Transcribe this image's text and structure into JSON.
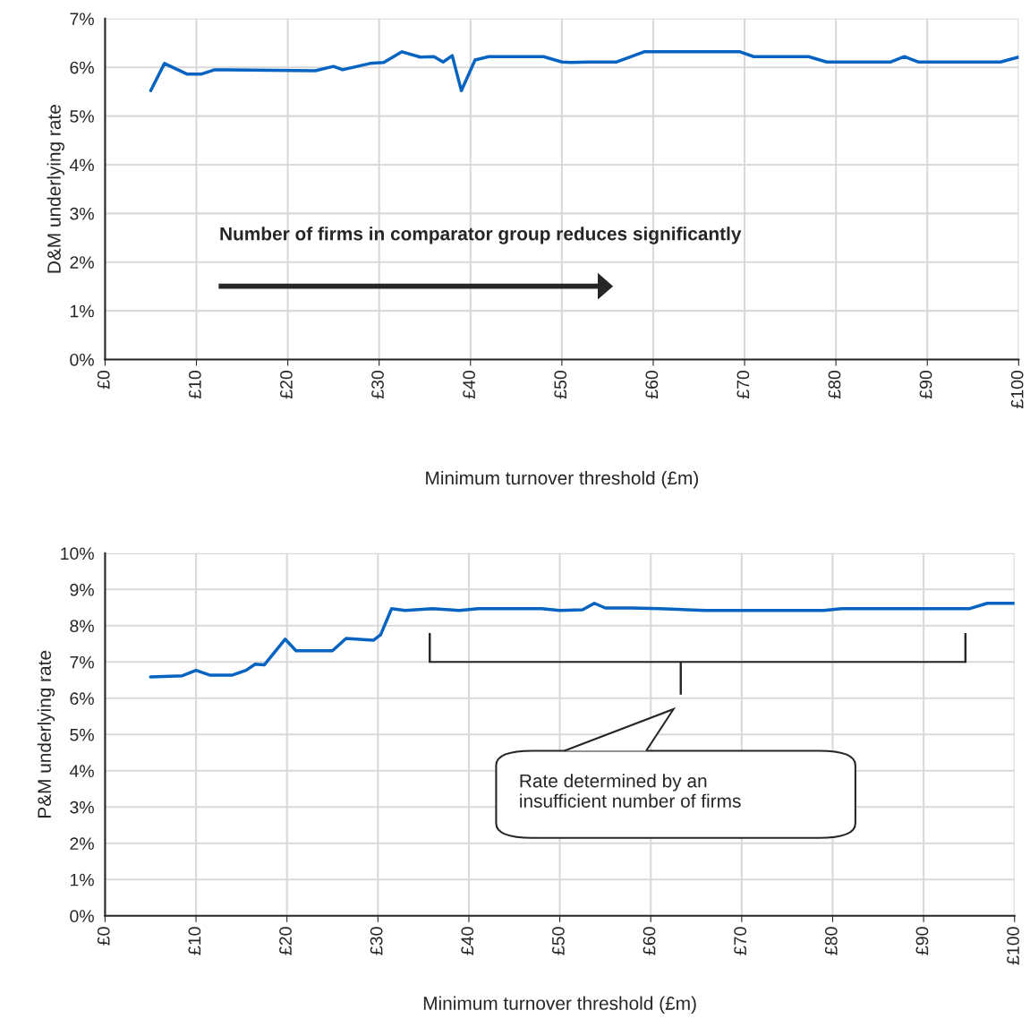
{
  "chart_data": [
    {
      "type": "line",
      "xlabel": "Minimum turnover threshold (£m)",
      "ylabel": "D&M underlying rate",
      "xlim": [
        0,
        100
      ],
      "ylim": [
        0,
        7
      ],
      "xticks": [
        {
          "value": 0,
          "label": "£0"
        },
        {
          "value": 10,
          "label": "£10"
        },
        {
          "value": 20,
          "label": "£20"
        },
        {
          "value": 30,
          "label": "£30"
        },
        {
          "value": 40,
          "label": "£40"
        },
        {
          "value": 50,
          "label": "£50"
        },
        {
          "value": 60,
          "label": "£60"
        },
        {
          "value": 70,
          "label": "£70"
        },
        {
          "value": 80,
          "label": "£80"
        },
        {
          "value": 90,
          "label": "£90"
        },
        {
          "value": 100,
          "label": "£100"
        }
      ],
      "yticks": [
        {
          "value": 0,
          "label": "0%"
        },
        {
          "value": 1,
          "label": "1%"
        },
        {
          "value": 2,
          "label": "2%"
        },
        {
          "value": 3,
          "label": "3%"
        },
        {
          "value": 4,
          "label": "4%"
        },
        {
          "value": 5,
          "label": "5%"
        },
        {
          "value": 6,
          "label": "6%"
        },
        {
          "value": 7,
          "label": "7%"
        }
      ],
      "grid": true,
      "line_style": "solid",
      "marker": "none",
      "annotations": [
        "Number of firms in comparator group reduces significantly"
      ],
      "series": [
        {
          "color": "#0563c1",
          "x": [
            5,
            6.5,
            9,
            10.5,
            12,
            23,
            25,
            26,
            29,
            30.5,
            32.5,
            34.5,
            36,
            37,
            38,
            39,
            40.5,
            42,
            48,
            50,
            51,
            53,
            56,
            59,
            61,
            69.5,
            71,
            77,
            79,
            86,
            87.5,
            89,
            98,
            100
          ],
          "values": [
            5.52,
            6.08,
            5.86,
            5.86,
            5.95,
            5.93,
            6.02,
            5.95,
            6.08,
            6.1,
            6.32,
            6.21,
            6.22,
            6.11,
            6.24,
            5.52,
            6.15,
            6.22,
            6.22,
            6.11,
            6.1,
            6.11,
            6.11,
            6.32,
            6.32,
            6.32,
            6.22,
            6.22,
            6.11,
            6.11,
            6.22,
            6.11,
            6.11,
            6.21
          ]
        }
      ]
    },
    {
      "type": "line",
      "xlabel": "Minimum turnover threshold (£m)",
      "ylabel": "P&M underlying rate",
      "xlim": [
        0,
        100
      ],
      "ylim": [
        0,
        10
      ],
      "xticks": [
        {
          "value": 0,
          "label": "£0"
        },
        {
          "value": 10,
          "label": "£10"
        },
        {
          "value": 20,
          "label": "£20"
        },
        {
          "value": 30,
          "label": "£30"
        },
        {
          "value": 40,
          "label": "£40"
        },
        {
          "value": 50,
          "label": "£50"
        },
        {
          "value": 60,
          "label": "£60"
        },
        {
          "value": 70,
          "label": "£70"
        },
        {
          "value": 80,
          "label": "£80"
        },
        {
          "value": 90,
          "label": "£90"
        },
        {
          "value": 100,
          "label": "£100"
        }
      ],
      "yticks": [
        {
          "value": 0,
          "label": "0%"
        },
        {
          "value": 1,
          "label": "1%"
        },
        {
          "value": 2,
          "label": "2%"
        },
        {
          "value": 3,
          "label": "3%"
        },
        {
          "value": 4,
          "label": "4%"
        },
        {
          "value": 5,
          "label": "5%"
        },
        {
          "value": 6,
          "label": "6%"
        },
        {
          "value": 7,
          "label": "7%"
        },
        {
          "value": 8,
          "label": "8%"
        },
        {
          "value": 9,
          "label": "9%"
        },
        {
          "value": 10,
          "label": "10%"
        }
      ],
      "grid": true,
      "line_style": "solid",
      "marker": "none",
      "annotations": [
        "Rate determined by an\ninsufficient number of firms"
      ],
      "series": [
        {
          "color": "#0563c1",
          "x": [
            5,
            8.5,
            10,
            11.5,
            14,
            15.5,
            16.5,
            17.5,
            19.8,
            21,
            25,
            26.5,
            29.5,
            30.3,
            31.5,
            33,
            36,
            39,
            41,
            48,
            50,
            52.5,
            53.8,
            55,
            58,
            61,
            64,
            66,
            79,
            81,
            95,
            97,
            98,
            100
          ],
          "values": [
            6.59,
            6.62,
            6.77,
            6.64,
            6.64,
            6.77,
            6.94,
            6.92,
            7.63,
            7.31,
            7.31,
            7.65,
            7.6,
            7.75,
            8.47,
            8.42,
            8.47,
            8.42,
            8.47,
            8.47,
            8.42,
            8.44,
            8.62,
            8.49,
            8.49,
            8.47,
            8.44,
            8.42,
            8.42,
            8.47,
            8.47,
            8.62,
            8.62,
            8.62
          ]
        }
      ]
    }
  ]
}
